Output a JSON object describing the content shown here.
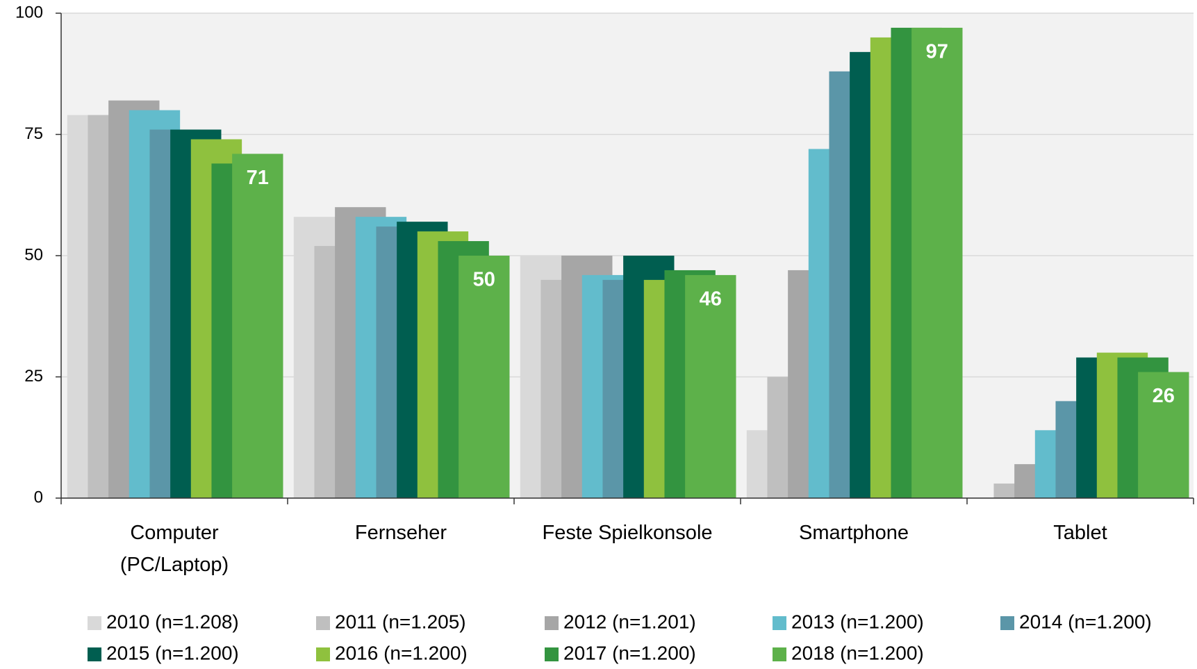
{
  "chart_data": {
    "type": "bar",
    "categories": [
      "Computer\n(PC/Laptop)",
      "Fernseher",
      "Feste Spielkonsole",
      "Smartphone",
      "Tablet"
    ],
    "series": [
      {
        "name": "2010 (n=1.208)",
        "color": "#d9d9d9",
        "values": [
          79,
          58,
          50,
          14,
          null
        ]
      },
      {
        "name": "2011 (n=1.205)",
        "color": "#bfbfbf",
        "values": [
          79,
          52,
          45,
          25,
          3
        ]
      },
      {
        "name": "2012 (n=1.201)",
        "color": "#a6a6a6",
        "values": [
          82,
          60,
          50,
          47,
          7
        ]
      },
      {
        "name": "2013 (n=1.200)",
        "color": "#62bccc",
        "values": [
          80,
          58,
          46,
          72,
          14
        ]
      },
      {
        "name": "2014 (n=1.200)",
        "color": "#5b96a8",
        "values": [
          76,
          56,
          45,
          88,
          20
        ]
      },
      {
        "name": "2015 (n=1.200)",
        "color": "#005e50",
        "values": [
          76,
          57,
          50,
          92,
          29
        ]
      },
      {
        "name": "2016 (n=1.200)",
        "color": "#8fc13e",
        "values": [
          74,
          55,
          45,
          95,
          30
        ]
      },
      {
        "name": "2017 (n=1.200)",
        "color": "#339440",
        "values": [
          69,
          53,
          47,
          97,
          29
        ]
      },
      {
        "name": "2018 (n=1.200)",
        "color": "#5db14a",
        "values": [
          71,
          50,
          46,
          97,
          26
        ],
        "show_labels": true
      }
    ],
    "ylim": [
      0,
      100
    ],
    "yticks": [
      0,
      25,
      50,
      75,
      100
    ],
    "grid": true
  }
}
